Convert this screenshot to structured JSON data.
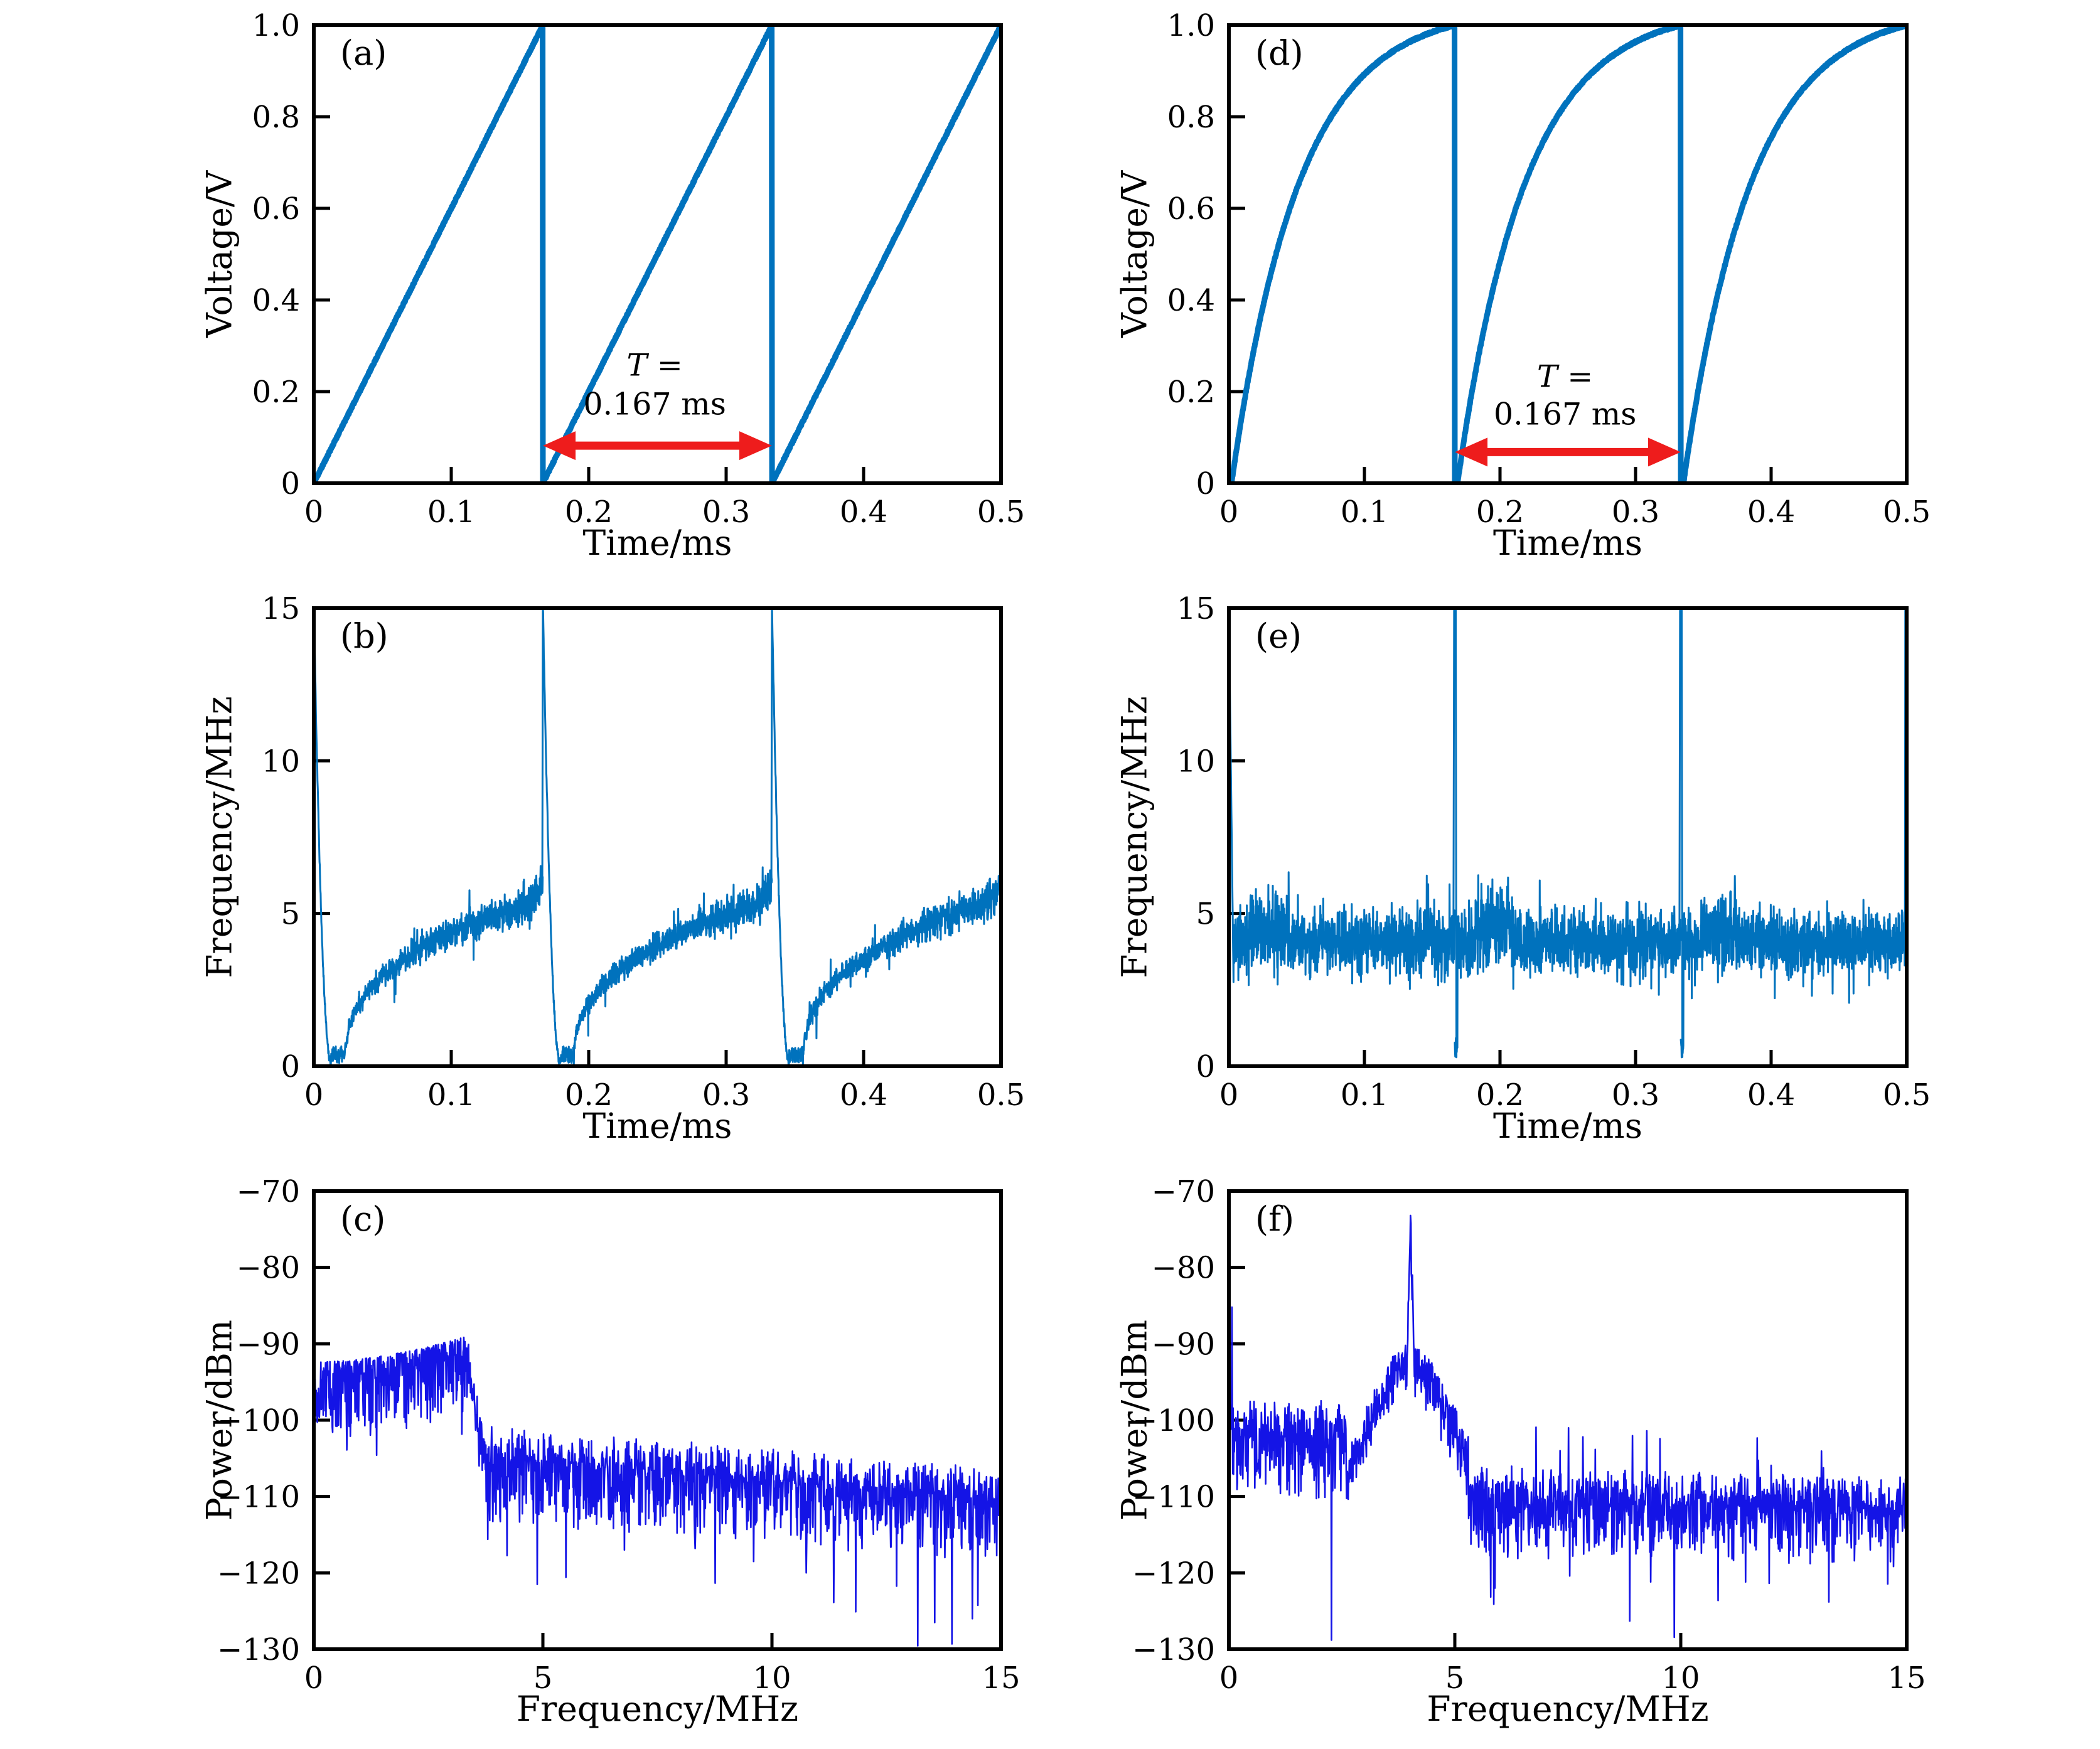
{
  "figure": {
    "layout": "2x3 grid of panels (a,d / b,e / c,f)",
    "background": "#ffffff",
    "frame_color": "#000000"
  },
  "chart_data": [
    {
      "id": "a",
      "panel_label": "(a)",
      "type": "line",
      "xlabel": "Time/ms",
      "ylabel": "Voltage/V",
      "xlim": [
        0,
        0.5
      ],
      "ylim": [
        0,
        1.0
      ],
      "grid": false,
      "legend": "none",
      "xticks": [
        0,
        0.1,
        0.2,
        0.3,
        0.4,
        0.5
      ],
      "xtick_labels": [
        "0",
        "0.1",
        "0.2",
        "0.3",
        "0.4",
        "0.5"
      ],
      "yticks": [
        0,
        0.2,
        0.4,
        0.6,
        0.8,
        1.0
      ],
      "ytick_labels": [
        "0",
        "0.2",
        "0.4",
        "0.6",
        "0.8",
        "1.0"
      ],
      "line_color": "#0072bd",
      "line_width": 9,
      "seed": 11,
      "signal": {
        "kind": "saw_linear",
        "period_ms": 0.16667,
        "v_min_V": 0,
        "v_max_V": 1.0,
        "periods_visible": 3,
        "resets_at_ms": [
          0.167,
          0.333,
          0.5
        ],
        "description": "Linear sawtooth: voltage ramps 0 to 1 V each 0.167 ms period, instantaneous reset"
      },
      "annotation": {
        "line1": "T =",
        "line2": "0.167 ms",
        "color": "#ee1c1c",
        "arrow_x1_ms": 0.1667,
        "arrow_x2_ms": 0.3333,
        "arrow_y_V": 0.082,
        "text_x_ms": 0.248,
        "text_y1_V": 0.235,
        "text_y2_V": 0.15
      }
    },
    {
      "id": "d",
      "panel_label": "(d)",
      "type": "line",
      "xlabel": "Time/ms",
      "ylabel": "Voltage/V",
      "xlim": [
        0,
        0.5
      ],
      "ylim": [
        0,
        1.0
      ],
      "grid": false,
      "legend": "none",
      "xticks": [
        0,
        0.1,
        0.2,
        0.3,
        0.4,
        0.5
      ],
      "xtick_labels": [
        "0",
        "0.1",
        "0.2",
        "0.3",
        "0.4",
        "0.5"
      ],
      "yticks": [
        0,
        0.2,
        0.4,
        0.6,
        0.8,
        1.0
      ],
      "ytick_labels": [
        "0",
        "0.2",
        "0.4",
        "0.6",
        "0.8",
        "1.0"
      ],
      "line_color": "#0072bd",
      "line_width": 9,
      "seed": 44,
      "signal": {
        "kind": "saw_exp",
        "period_ms": 0.16667,
        "v_min_V": 0,
        "v_max_V": 1.0,
        "periods_visible": 3,
        "resets_at_ms": [
          0.167,
          0.333,
          0.5
        ],
        "exp_rate": 3.3,
        "description": "Exponentially-saturating sawtooth: concave rise 0 to 1 V per 0.167 ms period, instantaneous reset"
      },
      "annotation": {
        "line1": "T =",
        "line2": "0.167 ms",
        "color": "#ee1c1c",
        "arrow_x1_ms": 0.1667,
        "arrow_x2_ms": 0.3333,
        "arrow_y_V": 0.068,
        "text_x_ms": 0.248,
        "text_y1_V": 0.21,
        "text_y2_V": 0.128
      }
    },
    {
      "id": "b",
      "panel_label": "(b)",
      "type": "line",
      "xlabel": "Time/ms",
      "ylabel": "Frequency/MHz",
      "xlim": [
        0,
        0.5
      ],
      "ylim": [
        0,
        15
      ],
      "grid": false,
      "legend": "none",
      "xticks": [
        0,
        0.1,
        0.2,
        0.3,
        0.4,
        0.5
      ],
      "xtick_labels": [
        "0",
        "0.1",
        "0.2",
        "0.3",
        "0.4",
        "0.5"
      ],
      "yticks": [
        0,
        5,
        10,
        15
      ],
      "ytick_labels": [
        "0",
        "5",
        "10",
        "15"
      ],
      "line_color": "#0072bd",
      "line_width": 3,
      "seed": 22,
      "signal": {
        "kind": "chirp_freq",
        "period_ms": 0.16667,
        "reset_spike_MHz": 15,
        "dip_MHz": 0.1,
        "sweep_end_MHz": 5.5,
        "preset_flare_MHz": 6.2,
        "description": "Instantaneous frequency: spike to 15 MHz at each reset (t = 0, 0.167, 0.333, 0.5 ms), dip to ~0, then noisy concave rise to ~5.5 MHz within each period"
      }
    },
    {
      "id": "e",
      "panel_label": "(e)",
      "type": "line",
      "xlabel": "Time/ms",
      "ylabel": "Frequency/MHz",
      "xlim": [
        0,
        0.5
      ],
      "ylim": [
        0,
        15
      ],
      "grid": false,
      "legend": "none",
      "xticks": [
        0,
        0.1,
        0.2,
        0.3,
        0.4,
        0.5
      ],
      "xtick_labels": [
        "0",
        "0.1",
        "0.2",
        "0.3",
        "0.4",
        "0.5"
      ],
      "yticks": [
        0,
        5,
        10,
        15
      ],
      "ytick_labels": [
        "0",
        "5",
        "10",
        "15"
      ],
      "line_color": "#0072bd",
      "line_width": 3,
      "seed": 55,
      "signal": {
        "kind": "noisy_freq",
        "period_ms": 0.16667,
        "reset_spike_MHz": 15,
        "mean_MHz": 4.05,
        "band_MHz": [
          2.5,
          6.8
        ],
        "description": "Instantaneous frequency: roughly constant noisy band around 4 MHz, spikes to 15 MHz and brief dip to 0 at each reset (t = 0, 0.167, 0.333, 0.5 ms)"
      }
    },
    {
      "id": "c",
      "panel_label": "(c)",
      "type": "line",
      "xlabel": "Frequency/MHz",
      "ylabel": "Power/dBm",
      "xlim": [
        0,
        15
      ],
      "ylim": [
        -130,
        -70
      ],
      "grid": false,
      "legend": "none",
      "xticks": [
        0,
        5,
        10,
        15
      ],
      "xtick_labels": [
        "0",
        "5",
        "10",
        "15"
      ],
      "yticks": [
        -70,
        -80,
        -90,
        -100,
        -110,
        -120,
        -130
      ],
      "ytick_labels": [
        "−70",
        "−80",
        "−90",
        "−100",
        "−110",
        "−120",
        "−130"
      ],
      "line_color": "#1414e6",
      "line_width": 2.6,
      "seed": 33,
      "signal": {
        "kind": "spec_broad",
        "hump_range_MHz": [
          0,
          3.35
        ],
        "hump_top_dBm": -89,
        "hump_mean_dBm": -93,
        "hump_peak_MHz": 3.2,
        "floor_at_4MHz_dBm": -105,
        "floor_at_15MHz_dBm": -111,
        "deep_dips": [
          [
            4.88,
            -121.5
          ],
          [
            6.78,
            -117.0
          ],
          [
            9.6,
            -118.5
          ],
          [
            13.55,
            -126.5
          ],
          [
            13.93,
            -129.3
          ]
        ],
        "description": "RF spectrum: broad noisy hump from 0 to ~3.3 MHz peaking near -89 dBm, sharp shoulder, then noise floor decaying from ~-105 to ~-111 dBm with deep dropouts"
      }
    },
    {
      "id": "f",
      "panel_label": "(f)",
      "type": "line",
      "xlabel": "Frequency/MHz",
      "ylabel": "Power/dBm",
      "xlim": [
        0,
        15
      ],
      "ylim": [
        -130,
        -70
      ],
      "grid": false,
      "legend": "none",
      "xticks": [
        0,
        5,
        10,
        15
      ],
      "xtick_labels": [
        "0",
        "5",
        "10",
        "15"
      ],
      "yticks": [
        -70,
        -80,
        -90,
        -100,
        -110,
        -120,
        -130
      ],
      "ytick_labels": [
        "−70",
        "−80",
        "−90",
        "−100",
        "−110",
        "−120",
        "−130"
      ],
      "line_color": "#1414e6",
      "line_width": 2.6,
      "seed": 66,
      "signal": {
        "kind": "spec_peak",
        "peak_MHz": 4.02,
        "peak_dBm": -73.2,
        "pedestal_range_MHz": [
          2.6,
          5.3
        ],
        "pedestal_top_dBm": -91,
        "left_band_mean_dBm": -101,
        "noise_floor_dBm": -111,
        "dc_spike": [
          0.07,
          -85.2
        ],
        "deep_dips": [
          [
            2.27,
            -128.8
          ],
          [
            8.87,
            -126.3
          ],
          [
            13.28,
            -123.8
          ]
        ],
        "description": "RF spectrum: sharp carrier peak at ~4 MHz reaching ~-73 dBm on a noisy pedestal, spike near 0 MHz to ~-85 dBm, noise floor ~-111 dBm with deep dropouts"
      }
    }
  ]
}
